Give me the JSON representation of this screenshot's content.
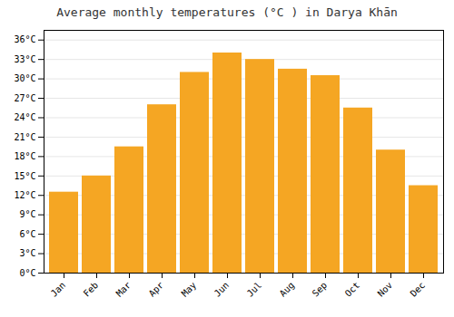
{
  "chart_data": {
    "type": "bar",
    "title": "Average monthly temperatures (°C ) in Darya Khān",
    "categories": [
      "Jan",
      "Feb",
      "Mar",
      "Apr",
      "May",
      "Jun",
      "Jul",
      "Aug",
      "Sep",
      "Oct",
      "Nov",
      "Dec"
    ],
    "values": [
      12.5,
      15.0,
      19.5,
      26.0,
      31.0,
      34.0,
      33.0,
      31.5,
      30.5,
      25.5,
      19.0,
      13.5
    ],
    "color": "#F5A623",
    "ylim": [
      0,
      37.5
    ],
    "yticks": [
      {
        "value": 0,
        "label": "0°C"
      },
      {
        "value": 3,
        "label": "3°C"
      },
      {
        "value": 6,
        "label": "6°C"
      },
      {
        "value": 9,
        "label": "9°C"
      },
      {
        "value": 12,
        "label": "12°C"
      },
      {
        "value": 15,
        "label": "15°C"
      },
      {
        "value": 18,
        "label": "18°C"
      },
      {
        "value": 21,
        "label": "21°C"
      },
      {
        "value": 24,
        "label": "24°C"
      },
      {
        "value": 27,
        "label": "27°C"
      },
      {
        "value": 30,
        "label": "30°C"
      },
      {
        "value": 33,
        "label": "33°C"
      },
      {
        "value": 36,
        "label": "36°C"
      }
    ],
    "grid": true
  }
}
